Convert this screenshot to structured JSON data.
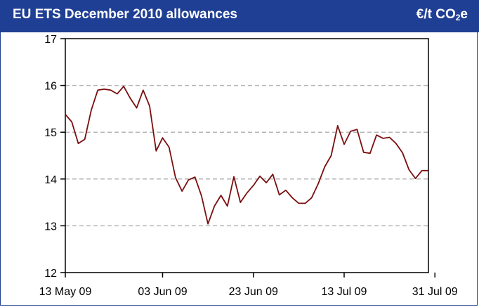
{
  "header": {
    "title": "EU ETS December 2010 allowances",
    "unit_main": "€/t CO",
    "unit_sub": "2",
    "unit_tail": "e"
  },
  "chart_data": {
    "type": "line",
    "title": "EU ETS December 2010 allowances",
    "ylabel": "€/t CO₂e",
    "xlabel": "",
    "ylim": [
      12,
      17
    ],
    "yticks": [
      12,
      13,
      14,
      15,
      16,
      17
    ],
    "gridlines": [
      13,
      14,
      15,
      16
    ],
    "x_ticks": [
      {
        "index": 0,
        "label": "13 May 09"
      },
      {
        "index": 15,
        "label": "03 Jun 09"
      },
      {
        "index": 29,
        "label": "23 Jun 09"
      },
      {
        "index": 43,
        "label": "13 Jul 09"
      },
      {
        "index": 57,
        "label": "31 Jul 09"
      }
    ],
    "color": "#7b0f0f",
    "series": [
      {
        "values": [
          15.38,
          15.22,
          14.76,
          14.85,
          15.47,
          15.9,
          15.92,
          15.9,
          15.82,
          15.98,
          15.73,
          15.52,
          15.9,
          15.56,
          14.6,
          14.88,
          14.68,
          14.03,
          13.74,
          13.98,
          14.04,
          13.64,
          13.04,
          13.42,
          13.65,
          13.42,
          14.05,
          13.5,
          13.7,
          13.86,
          14.06,
          13.92,
          14.1,
          13.66,
          13.76,
          13.6,
          13.48,
          13.48,
          13.6,
          13.9,
          14.26,
          14.5,
          15.14,
          14.74,
          15.02,
          15.06,
          14.57,
          14.55,
          14.94,
          14.87,
          14.89,
          14.76,
          14.56,
          14.2,
          14.01,
          14.18,
          14.18
        ]
      }
    ]
  }
}
